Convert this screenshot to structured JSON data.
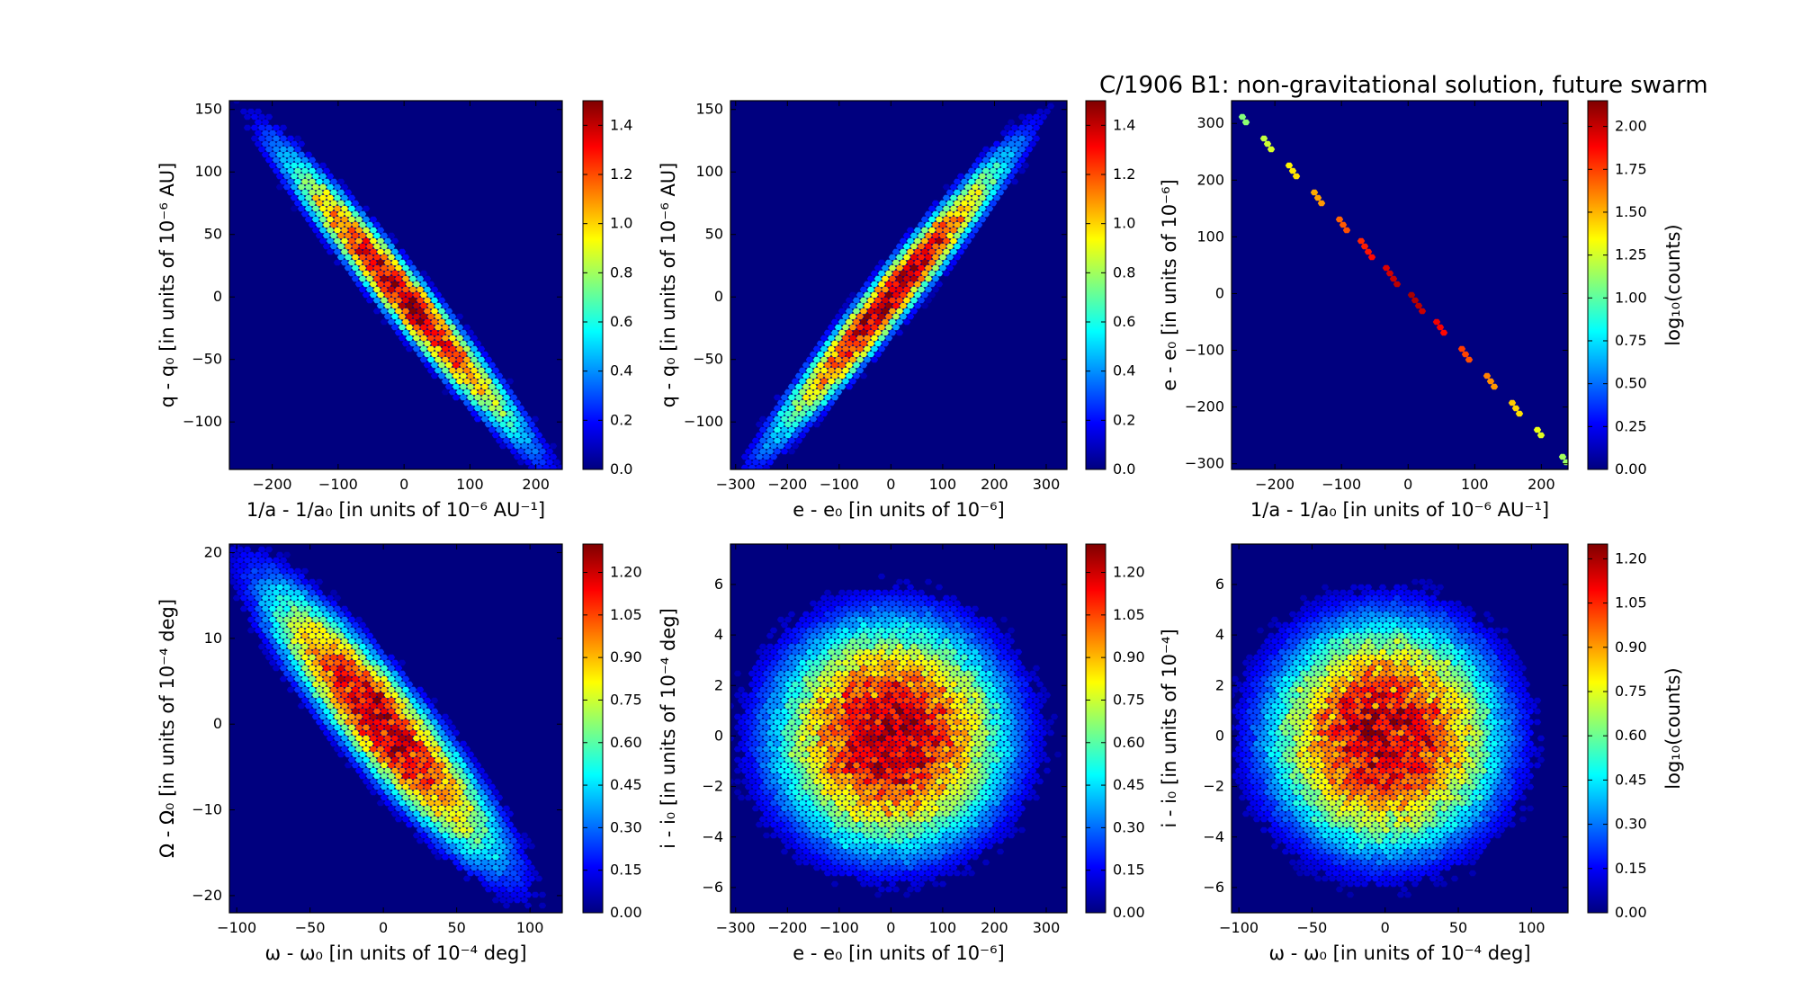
{
  "figure": {
    "title": "C/1906 B1:  non-gravitational solution, future swarm"
  },
  "colormap": {
    "name": "jet",
    "stops": [
      "#00007f",
      "#0000ff",
      "#007fff",
      "#00ffff",
      "#7fff7f",
      "#ffff00",
      "#ff7f00",
      "#ff0000",
      "#7f0000"
    ],
    "background": "#00007f"
  },
  "chart_data": [
    {
      "type": "heatmap",
      "subtype": "hexbin",
      "xlabel": "1/a - 1/a₀ [in units of 10⁻⁶ AU⁻¹]",
      "ylabel": "q - q₀ [in units of 10⁻⁶ AU]",
      "xlim": [
        -265,
        240
      ],
      "ylim": [
        -138,
        157
      ],
      "xticks": [
        -200,
        -100,
        0,
        100,
        200
      ],
      "yticks": [
        -100,
        -50,
        0,
        50,
        100,
        150
      ],
      "xtick_labels": [
        "−200",
        "−100",
        "0",
        "100",
        "200"
      ],
      "ytick_labels": [
        "−100",
        "−50",
        "0",
        "50",
        "100",
        "150"
      ],
      "correlation": -0.97,
      "sigma_x": 80,
      "sigma_y": 50,
      "colorbar": {
        "min": 0.0,
        "max": 1.5,
        "ticks": [
          0.0,
          0.2,
          0.4,
          0.6,
          0.8,
          1.0,
          1.2,
          1.4
        ],
        "tick_labels": [
          "0.0",
          "0.2",
          "0.4",
          "0.6",
          "0.8",
          "1.0",
          "1.2",
          "1.4"
        ],
        "label": ""
      }
    },
    {
      "type": "heatmap",
      "subtype": "hexbin",
      "xlabel": "e - e₀ [in units of 10⁻⁶]",
      "ylabel": "q - q₀ [in units of 10⁻⁶ AU]",
      "xlim": [
        -310,
        340
      ],
      "ylim": [
        -138,
        157
      ],
      "xticks": [
        -300,
        -200,
        -100,
        0,
        100,
        200,
        300
      ],
      "yticks": [
        -100,
        -50,
        0,
        50,
        100,
        150
      ],
      "xtick_labels": [
        "−300",
        "−200",
        "−100",
        "0",
        "100",
        "200",
        "300"
      ],
      "ytick_labels": [
        "−100",
        "−50",
        "0",
        "50",
        "100",
        "150"
      ],
      "correlation": 0.97,
      "sigma_x": 100,
      "sigma_y": 50,
      "colorbar": {
        "min": 0.0,
        "max": 1.5,
        "ticks": [
          0.0,
          0.2,
          0.4,
          0.6,
          0.8,
          1.0,
          1.2,
          1.4
        ],
        "tick_labels": [
          "0.0",
          "0.2",
          "0.4",
          "0.6",
          "0.8",
          "1.0",
          "1.2",
          "1.4"
        ],
        "label": ""
      }
    },
    {
      "type": "heatmap",
      "subtype": "hexbin",
      "xlabel": "1/a - 1/a₀ [in units of 10⁻⁶ AU⁻¹]",
      "ylabel": "e - e₀ [in units of 10⁻⁶]",
      "xlim": [
        -265,
        240
      ],
      "ylim": [
        -310,
        340
      ],
      "xticks": [
        -200,
        -100,
        0,
        100,
        200
      ],
      "yticks": [
        -300,
        -200,
        -100,
        0,
        100,
        200,
        300
      ],
      "xtick_labels": [
        "−200",
        "−100",
        "0",
        "100",
        "200"
      ],
      "ytick_labels": [
        "−300",
        "−200",
        "−100",
        "0",
        "100",
        "200",
        "300"
      ],
      "correlation": -0.9999,
      "sigma_x": 80,
      "sigma_y": 100,
      "colorbar": {
        "min": 0.0,
        "max": 2.15,
        "ticks": [
          0.0,
          0.25,
          0.5,
          0.75,
          1.0,
          1.25,
          1.5,
          1.75,
          2.0
        ],
        "tick_labels": [
          "0.00",
          "0.25",
          "0.50",
          "0.75",
          "1.00",
          "1.25",
          "1.50",
          "1.75",
          "2.00"
        ],
        "label": "log₁₀(counts)"
      }
    },
    {
      "type": "heatmap",
      "subtype": "hexbin",
      "xlabel": "ω - ω₀ [in units of 10⁻⁴ deg]",
      "ylabel": "Ω - Ω₀ [in units of 10⁻⁴ deg]",
      "xlim": [
        -105,
        122
      ],
      "ylim": [
        -22,
        21
      ],
      "xticks": [
        -100,
        -50,
        0,
        50,
        100
      ],
      "yticks": [
        -20,
        -10,
        0,
        10,
        20
      ],
      "xtick_labels": [
        "−100",
        "−50",
        "0",
        "50",
        "100"
      ],
      "ytick_labels": [
        "−20",
        "−10",
        "0",
        "10",
        "20"
      ],
      "correlation": -0.9,
      "sigma_x": 35,
      "sigma_y": 7,
      "colorbar": {
        "min": 0.0,
        "max": 1.3,
        "ticks": [
          0.0,
          0.15,
          0.3,
          0.45,
          0.6,
          0.75,
          0.9,
          1.05,
          1.2
        ],
        "tick_labels": [
          "0.00",
          "0.15",
          "0.30",
          "0.45",
          "0.60",
          "0.75",
          "0.90",
          "1.05",
          "1.20"
        ],
        "label": ""
      }
    },
    {
      "type": "heatmap",
      "subtype": "hexbin",
      "xlabel": "e - e₀ [in units of 10⁻⁶]",
      "ylabel": "i - i₀ [in units of 10⁻⁴ deg]",
      "xlim": [
        -310,
        340
      ],
      "ylim": [
        -7,
        7.6
      ],
      "xticks": [
        -300,
        -200,
        -100,
        0,
        100,
        200,
        300
      ],
      "yticks": [
        -6,
        -4,
        -2,
        0,
        2,
        4,
        6
      ],
      "xtick_labels": [
        "−300",
        "−200",
        "−100",
        "0",
        "100",
        "200",
        "300"
      ],
      "ytick_labels": [
        "−6",
        "−4",
        "−2",
        "0",
        "2",
        "4",
        "6"
      ],
      "correlation": 0.0,
      "sigma_x": 100,
      "sigma_y": 2,
      "colorbar": {
        "min": 0.0,
        "max": 1.3,
        "ticks": [
          0.0,
          0.15,
          0.3,
          0.45,
          0.6,
          0.75,
          0.9,
          1.05,
          1.2
        ],
        "tick_labels": [
          "0.00",
          "0.15",
          "0.30",
          "0.45",
          "0.60",
          "0.75",
          "0.90",
          "1.05",
          "1.20"
        ],
        "label": ""
      }
    },
    {
      "type": "heatmap",
      "subtype": "hexbin",
      "xlabel": "ω - ω₀ [in units of 10⁻⁴ deg]",
      "ylabel": "i - i₀ [in units of 10⁻⁴]",
      "xlim": [
        -105,
        125
      ],
      "ylim": [
        -7,
        7.6
      ],
      "xticks": [
        -100,
        -50,
        0,
        50,
        100
      ],
      "yticks": [
        -6,
        -4,
        -2,
        0,
        2,
        4,
        6
      ],
      "xtick_labels": [
        "−100",
        "−50",
        "0",
        "50",
        "100"
      ],
      "ytick_labels": [
        "−6",
        "−4",
        "−2",
        "0",
        "2",
        "4",
        "6"
      ],
      "correlation": 0.0,
      "sigma_x": 35,
      "sigma_y": 2,
      "colorbar": {
        "min": 0.0,
        "max": 1.25,
        "ticks": [
          0.0,
          0.15,
          0.3,
          0.45,
          0.6,
          0.75,
          0.9,
          1.05,
          1.2
        ],
        "tick_labels": [
          "0.00",
          "0.15",
          "0.30",
          "0.45",
          "0.60",
          "0.75",
          "0.90",
          "1.05",
          "1.20"
        ],
        "label": "log₁₀(counts)"
      }
    }
  ]
}
